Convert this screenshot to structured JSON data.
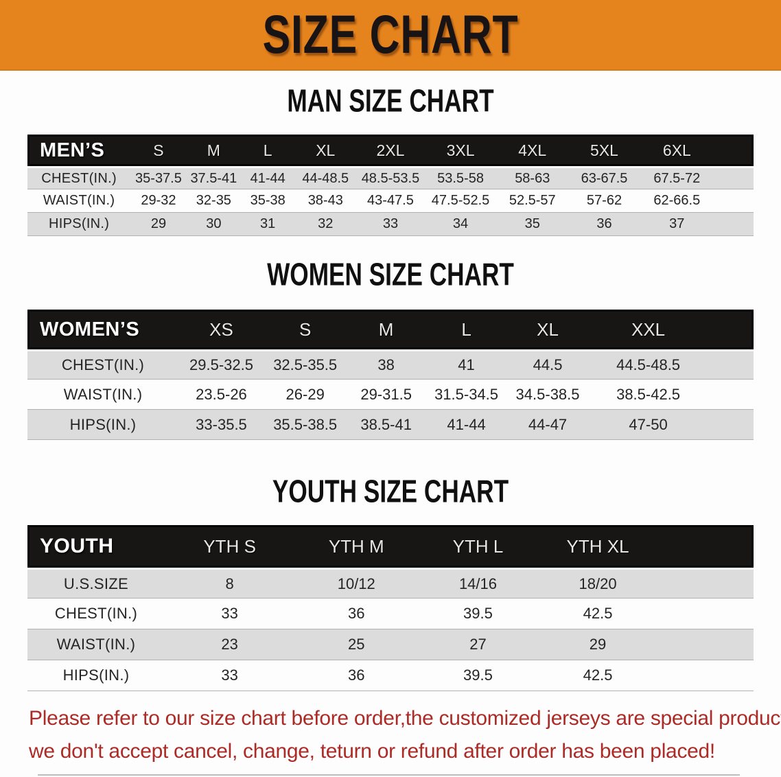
{
  "banner": {
    "title": "SIZE CHART"
  },
  "colors": {
    "banner_bg": "#E5831D",
    "header_bar": "#181515",
    "row_gray": "#DCDCDC",
    "footer_text": "#AC2B26"
  },
  "sections": [
    {
      "heading": "MAN SIZE CHART",
      "table": {
        "header_label": "MEN’S",
        "columns": [
          "S",
          "M",
          "L",
          "XL",
          "2XL",
          "3XL",
          "4XL",
          "5XL",
          "6XL"
        ],
        "rows": [
          {
            "label": "CHEST(IN.)",
            "values": [
              "35-37.5",
              "37.5-41",
              "41-44",
              "44-48.5",
              "48.5-53.5",
              "53.5-58",
              "58-63",
              "63-67.5",
              "67.5-72"
            ]
          },
          {
            "label": "WAIST(IN.)",
            "values": [
              "29-32",
              "32-35",
              "35-38",
              "38-43",
              "43-47.5",
              "47.5-52.5",
              "52.5-57",
              "57-62",
              "62-66.5"
            ]
          },
          {
            "label": "HIPS(IN.)",
            "values": [
              "29",
              "30",
              "31",
              "32",
              "33",
              "34",
              "35",
              "36",
              "37"
            ]
          }
        ]
      }
    },
    {
      "heading": "WOMEN SIZE CHART",
      "table": {
        "header_label": "WOMEN’S",
        "columns": [
          "XS",
          "S",
          "M",
          "L",
          "XL",
          "XXL"
        ],
        "rows": [
          {
            "label": "CHEST(IN.)",
            "values": [
              "29.5-32.5",
              "32.5-35.5",
              "38",
              "41",
              "44.5",
              "44.5-48.5"
            ]
          },
          {
            "label": "WAIST(IN.)",
            "values": [
              "23.5-26",
              "26-29",
              "29-31.5",
              "31.5-34.5",
              "34.5-38.5",
              "38.5-42.5"
            ]
          },
          {
            "label": "HIPS(IN.)",
            "values": [
              "33-35.5",
              "35.5-38.5",
              "38.5-41",
              "41-44",
              "44-47",
              "47-50"
            ]
          }
        ]
      }
    },
    {
      "heading": "YOUTH SIZE CHART",
      "table": {
        "header_label": "YOUTH",
        "columns": [
          "YTH S",
          "YTH M",
          "YTH L",
          "YTH XL"
        ],
        "rows": [
          {
            "label": "U.S.SIZE",
            "values": [
              "8",
              "10/12",
              "14/16",
              "18/20"
            ]
          },
          {
            "label": "CHEST(IN.)",
            "values": [
              "33",
              "36",
              "39.5",
              "42.5"
            ]
          },
          {
            "label": "WAIST(IN.)",
            "values": [
              "23",
              "25",
              "27",
              "29"
            ]
          },
          {
            "label": "HIPS(IN.)",
            "values": [
              "33",
              "36",
              "39.5",
              "42.5"
            ]
          }
        ]
      }
    }
  ],
  "footer": {
    "line1": "Please refer to our size chart before order,the customized jerseys are special products,",
    "line2": "we don't accept cancel, change, teturn or refund after order has been placed!"
  }
}
